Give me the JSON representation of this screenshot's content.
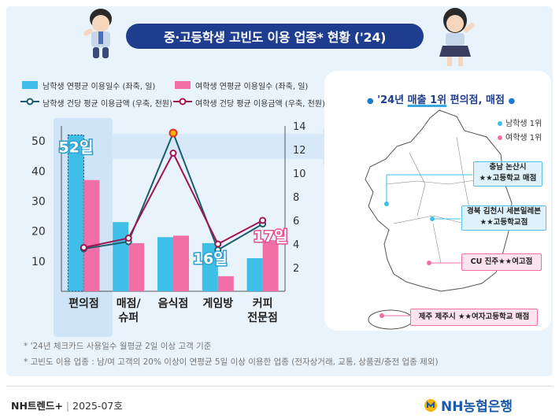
{
  "title": "중·고등학생 고빈도 이용 업종* 현황 ('24)",
  "chart_data": {
    "type": "bar",
    "categories": [
      [
        "편의점"
      ],
      [
        "매점/",
        "슈퍼"
      ],
      [
        "음식점"
      ],
      [
        "게임방"
      ],
      [
        "커피",
        "전문점"
      ]
    ],
    "series": [
      {
        "name": "남학생 연평균 이용일수 (좌축, 일)",
        "type": "bar",
        "axis": "left",
        "color": "#3dbfe8",
        "values": [
          52,
          23,
          18,
          16,
          11
        ]
      },
      {
        "name": "여학생 연평균 이용일수 (좌축, 일)",
        "type": "bar",
        "axis": "left",
        "color": "#f26ea6",
        "values": [
          37,
          16,
          18.5,
          5,
          17
        ]
      },
      {
        "name": "남학생 건당 평균 이용금액 (우축, 천원)",
        "type": "line",
        "axis": "right",
        "color": "#1b5e6b",
        "values": [
          3.6,
          4.2,
          13.4,
          3.5,
          5.7
        ]
      },
      {
        "name": "여학생 건당 평균 이용금액 (우축, 천원)",
        "type": "line",
        "axis": "right",
        "color": "#a0154f",
        "values": [
          3.7,
          4.5,
          11.7,
          4.0,
          6.0
        ]
      }
    ],
    "ylim_left": [
      0,
      55
    ],
    "yticks_left": [
      10,
      20,
      30,
      40,
      50
    ],
    "ylim_right": [
      0,
      14
    ],
    "yticks_right": [
      2,
      4,
      6,
      8,
      10,
      12,
      14
    ],
    "annotations": [
      {
        "text": "52일",
        "category_index": 0,
        "series_index": 0
      },
      {
        "text": "16일",
        "category_index": 3,
        "series_index": 0
      },
      {
        "text": "17일",
        "category_index": 4,
        "series_index": 1
      }
    ]
  },
  "legend": {
    "item1": "남학생 연평균 이용일수 (좌축, 일)",
    "item2": "여학생 연평균 이용일수 (좌축, 일)",
    "item3": "남학생 건당 평균 이용금액 (우축, 천원)",
    "item4": "여학생 건당 평균 이용금액 (우축, 천원)"
  },
  "map": {
    "title_prefix": "'24년",
    "title_main": "매출 1위",
    "title_suffix": "편의점, 매점",
    "legend_male": "남학생 1위",
    "legend_female": "여학생 1위",
    "callouts": [
      {
        "line1": "충남 논산시",
        "line2": "★★고등학교 매점"
      },
      {
        "line1": "경북 김천시 세븐일레븐",
        "line2": "★★고등학교점"
      },
      {
        "line1": "CU 진주★★여고점"
      },
      {
        "line1": "제주 제주시 ★★여자고등학교 매점"
      }
    ]
  },
  "footnotes": {
    "note1": "* '24년 체크카드 사용일수 월평균 2일 이상 고객 기준",
    "note2": "* 고빈도 이용 업종 : 남/여 고객의 20% 이상이 연평균 5일 이상 이용한 업종 (전자상거래, 교통, 상품권/충전 업종 제외)"
  },
  "footer": {
    "brand": "NH트렌드+",
    "separator": "|",
    "date": "2025-07호",
    "bank": "NH농협은행"
  },
  "colors": {
    "navy": "#1f3d8f",
    "male_bar": "#3dbfe8",
    "female_bar": "#f26ea6",
    "male_line": "#1b5e6b",
    "female_line": "#a0154f"
  }
}
